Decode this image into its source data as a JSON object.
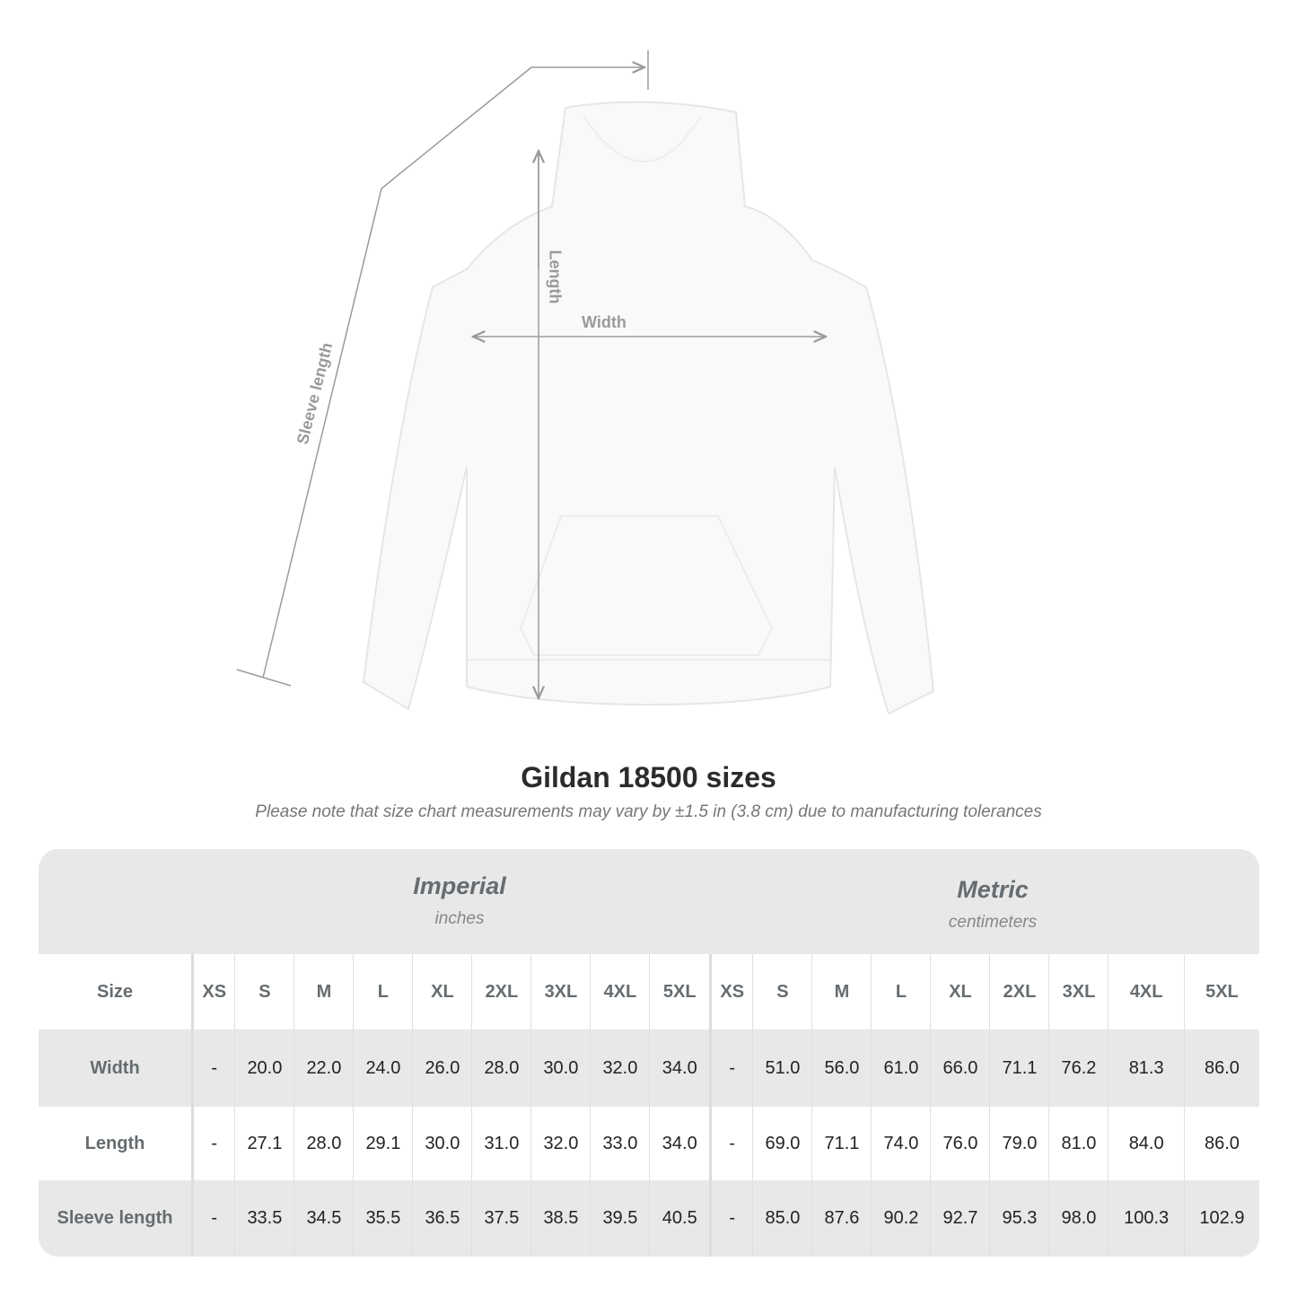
{
  "diagram": {
    "labels": {
      "sleeve": "Sleeve length",
      "length": "Length",
      "width": "Width"
    },
    "line_color": "#9a9a9a",
    "garment_color": "#f9f9f9"
  },
  "title": "Gildan 18500 sizes",
  "note": "Please note that size chart measurements may vary by ±1.5 in (3.8 cm) due to manufacturing tolerances",
  "table": {
    "imperial": {
      "heading": "Imperial",
      "unit": "inches"
    },
    "metric": {
      "heading": "Metric",
      "unit": "centimeters"
    },
    "size_label": "Size",
    "sizes": [
      "XS",
      "S",
      "M",
      "L",
      "XL",
      "2XL",
      "3XL",
      "4XL",
      "5XL"
    ],
    "rows": [
      {
        "label": "Width",
        "imperial": [
          "-",
          "20.0",
          "22.0",
          "24.0",
          "26.0",
          "28.0",
          "30.0",
          "32.0",
          "34.0"
        ],
        "metric": [
          "-",
          "51.0",
          "56.0",
          "61.0",
          "66.0",
          "71.1",
          "76.2",
          "81.3",
          "86.0"
        ]
      },
      {
        "label": "Length",
        "imperial": [
          "-",
          "27.1",
          "28.0",
          "29.1",
          "30.0",
          "31.0",
          "32.0",
          "33.0",
          "34.0"
        ],
        "metric": [
          "-",
          "69.0",
          "71.1",
          "74.0",
          "76.0",
          "79.0",
          "81.0",
          "84.0",
          "86.0"
        ]
      },
      {
        "label": "Sleeve length",
        "imperial": [
          "-",
          "33.5",
          "34.5",
          "35.5",
          "36.5",
          "37.5",
          "38.5",
          "39.5",
          "40.5"
        ],
        "metric": [
          "-",
          "85.0",
          "87.6",
          "90.2",
          "92.7",
          "95.3",
          "98.0",
          "100.3",
          "102.9"
        ]
      }
    ],
    "header_bg": "#e8e8e8"
  }
}
